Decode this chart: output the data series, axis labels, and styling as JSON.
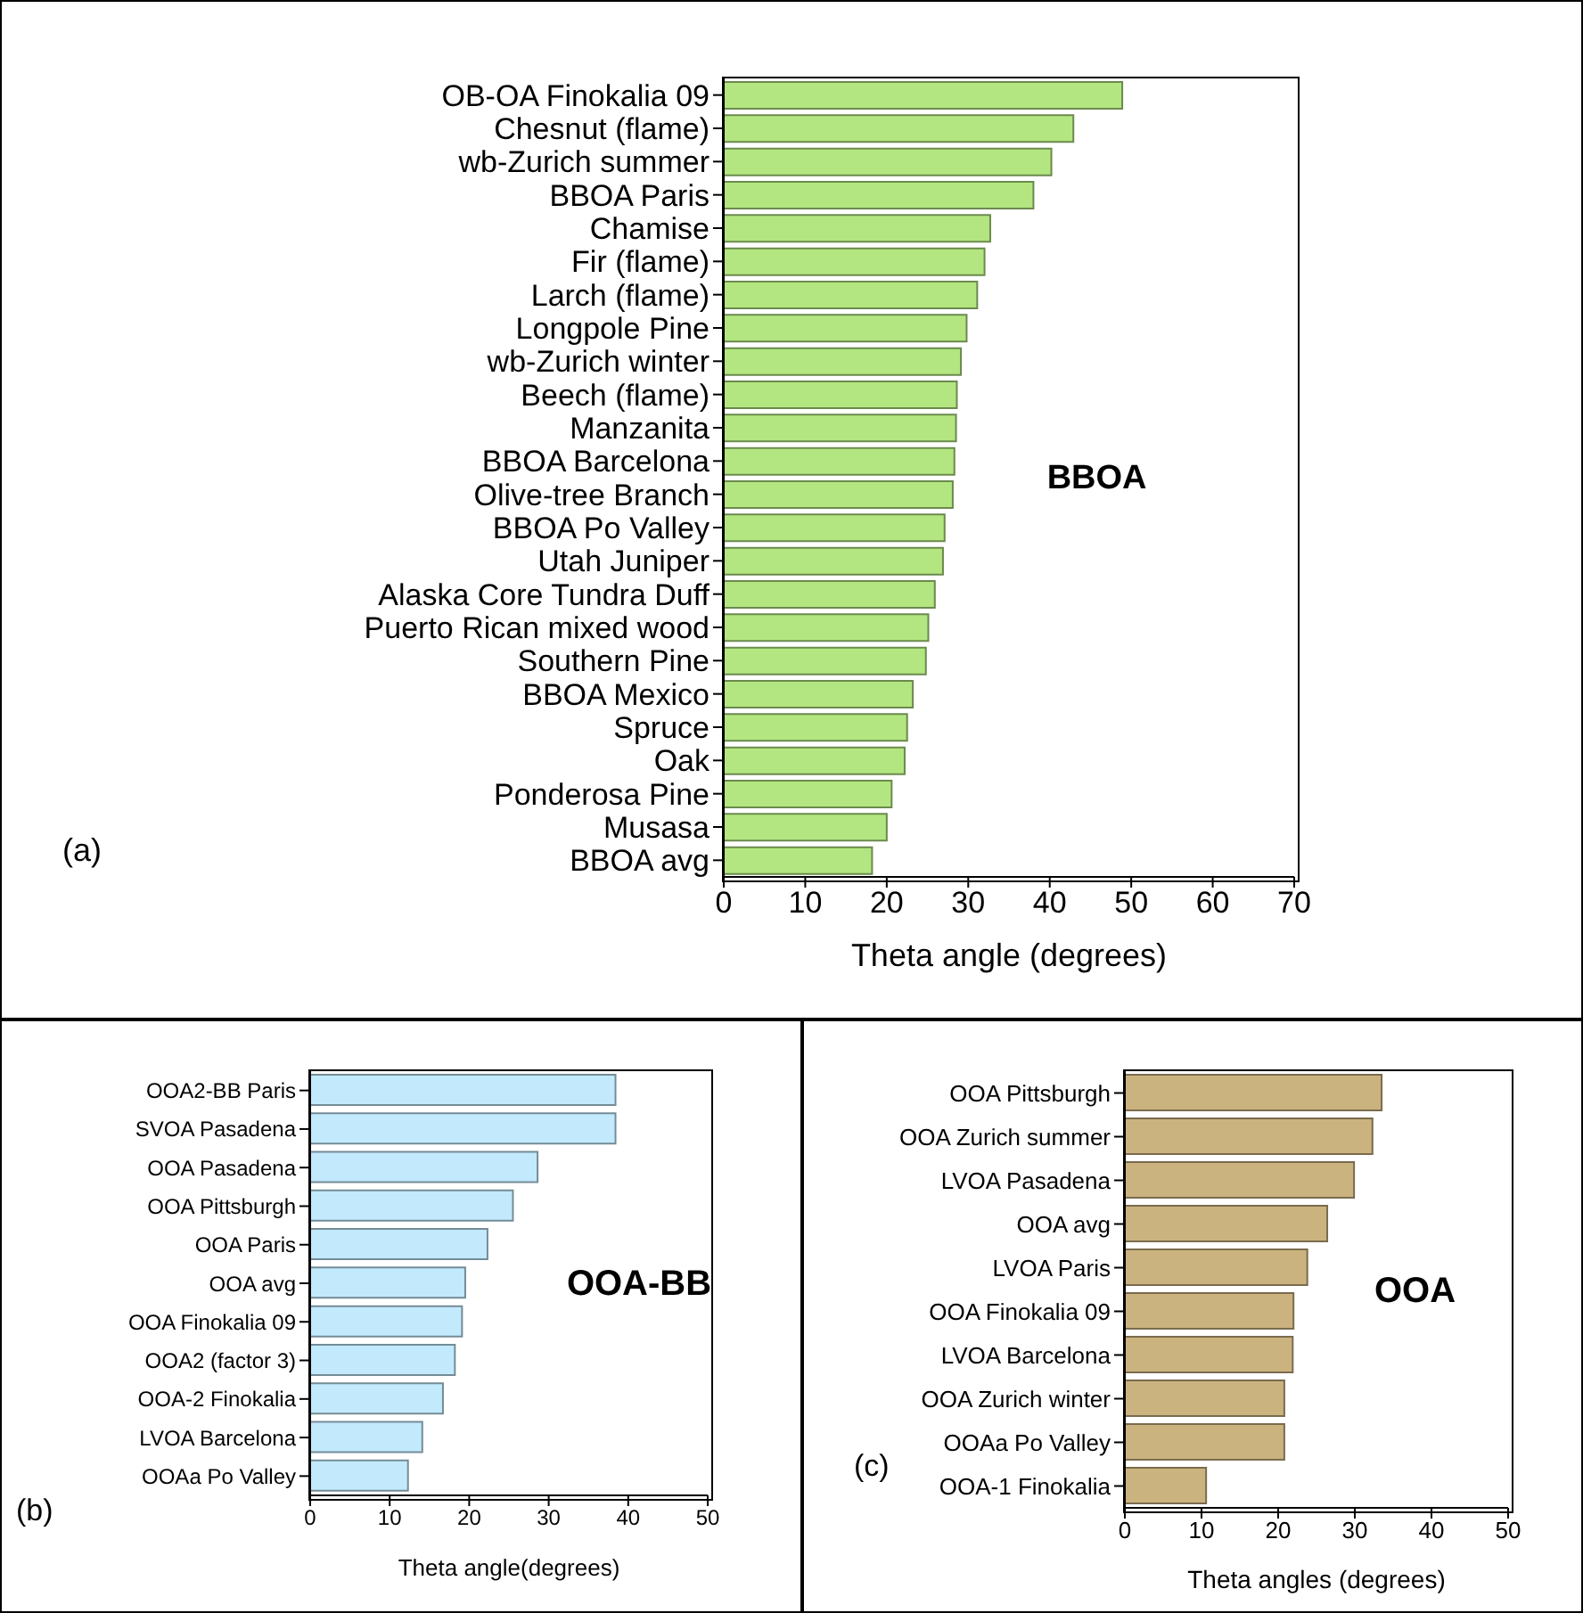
{
  "chart_data": [
    {
      "type": "bar",
      "orientation": "horizontal",
      "categories": [
        "OB-OA Finokalia 09",
        "Chesnut (flame)",
        "wb-Zurich summer",
        "BBOA Paris",
        "Chamise",
        "Fir (flame)",
        "Larch (flame)",
        "Longpole  Pine",
        "wb-Zurich winter",
        "Beech (flame)",
        "Manzanita",
        "BBOA Barcelona",
        "Olive-tree Branch",
        "BBOA Po Valley",
        "Utah Juniper",
        "Alaska Core Tundra Duff",
        "Puerto Rican mixed wood",
        "Southern Pine",
        "BBOA Mexico",
        "Spruce",
        "Oak",
        "Ponderosa Pine",
        "Musasa",
        "BBOA avg"
      ],
      "values": [
        48.9,
        42.9,
        40.2,
        38.0,
        32.7,
        32.0,
        31.1,
        29.8,
        29.1,
        28.6,
        28.5,
        28.3,
        28.1,
        27.1,
        26.9,
        25.9,
        25.1,
        24.8,
        23.2,
        22.5,
        22.2,
        20.6,
        20.0,
        18.2
      ],
      "color": "#b3e680",
      "xlim": [
        0,
        70
      ],
      "xticks": [
        0,
        10,
        20,
        30,
        40,
        50,
        60,
        70
      ],
      "xlabel": "Theta angle (degrees)",
      "annotations": [
        "BBOA",
        "(a)"
      ]
    },
    {
      "type": "bar",
      "orientation": "horizontal",
      "categories": [
        "OOA2-BB Paris",
        "SVOA Pasadena",
        "OOA Pasadena",
        "OOA Pittsburgh",
        "OOA Paris",
        "OOA avg",
        "OOA Finokalia 09",
        "OOA2 (factor 3)",
        "OOA-2 Finokalia",
        "LVOA Barcelona",
        "OOAa Po Valley"
      ],
      "values": [
        38.4,
        38.4,
        28.6,
        25.5,
        22.3,
        19.5,
        19.1,
        18.2,
        16.7,
        14.1,
        12.3
      ],
      "color": "#c2eafc",
      "xlim": [
        0,
        50
      ],
      "xticks": [
        0,
        10,
        20,
        30,
        40,
        50
      ],
      "xlabel": "Theta angle(degrees)",
      "annotations": [
        "OOA-BB",
        "(b)"
      ]
    },
    {
      "type": "bar",
      "orientation": "horizontal",
      "categories": [
        "OOA Pittsburgh",
        "OOA Zurich summer",
        "LVOA Pasadena",
        "OOA avg",
        "LVOA Paris",
        "OOA Finokalia 09",
        "LVOA Barcelona",
        "OOA Zurich winter",
        "OOAa Po Valley",
        "OOA-1 Finokalia"
      ],
      "values": [
        33.5,
        32.3,
        29.9,
        26.4,
        23.8,
        22.0,
        21.9,
        20.8,
        20.8,
        10.6
      ],
      "color": "#cbb380",
      "xlim": [
        0,
        50
      ],
      "xticks": [
        0,
        10,
        20,
        30,
        40,
        50
      ],
      "xlabel": "Theta angles (degrees)",
      "annotations": [
        "OOA",
        "(c)"
      ]
    }
  ]
}
